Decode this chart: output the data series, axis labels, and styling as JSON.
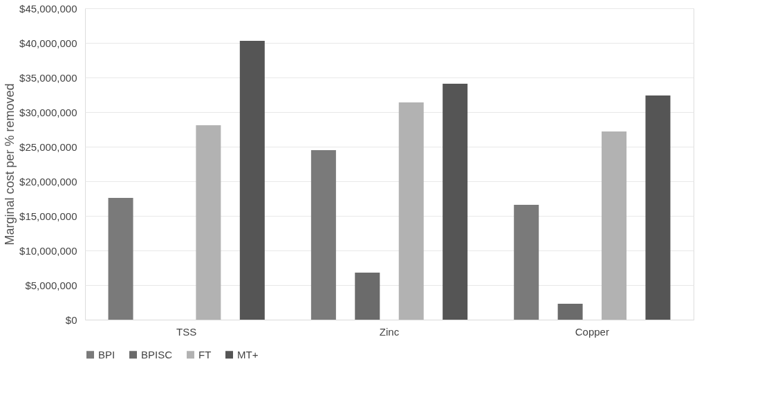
{
  "chart_data": {
    "type": "bar",
    "ylabel": "Marginal cost per % removed",
    "categories": [
      "TSS",
      "Zinc",
      "Copper"
    ],
    "series": [
      {
        "name": "BPI",
        "color": "#7a7a7a",
        "values": [
          17600000,
          24500000,
          16600000
        ]
      },
      {
        "name": "BPISC",
        "color": "#6b6b6b",
        "values": [
          null,
          6800000,
          2300000
        ]
      },
      {
        "name": "FT",
        "color": "#b2b2b2",
        "values": [
          28100000,
          31400000,
          27200000
        ]
      },
      {
        "name": "MT+",
        "color": "#555555",
        "values": [
          40300000,
          34100000,
          32400000
        ]
      }
    ],
    "ylim": [
      0,
      45000000
    ],
    "yticks": [
      {
        "value": 0,
        "label": "$0"
      },
      {
        "value": 5000000,
        "label": "$5,000,000"
      },
      {
        "value": 10000000,
        "label": "$10,000,000"
      },
      {
        "value": 15000000,
        "label": "$15,000,000"
      },
      {
        "value": 20000000,
        "label": "$20,000,000"
      },
      {
        "value": 25000000,
        "label": "$25,000,000"
      },
      {
        "value": 30000000,
        "label": "$30,000,000"
      },
      {
        "value": 35000000,
        "label": "$35,000,000"
      },
      {
        "value": 40000000,
        "label": "$40,000,000"
      },
      {
        "value": 45000000,
        "label": "$45,000,000"
      }
    ],
    "grid": "y",
    "legend": "bottom"
  }
}
